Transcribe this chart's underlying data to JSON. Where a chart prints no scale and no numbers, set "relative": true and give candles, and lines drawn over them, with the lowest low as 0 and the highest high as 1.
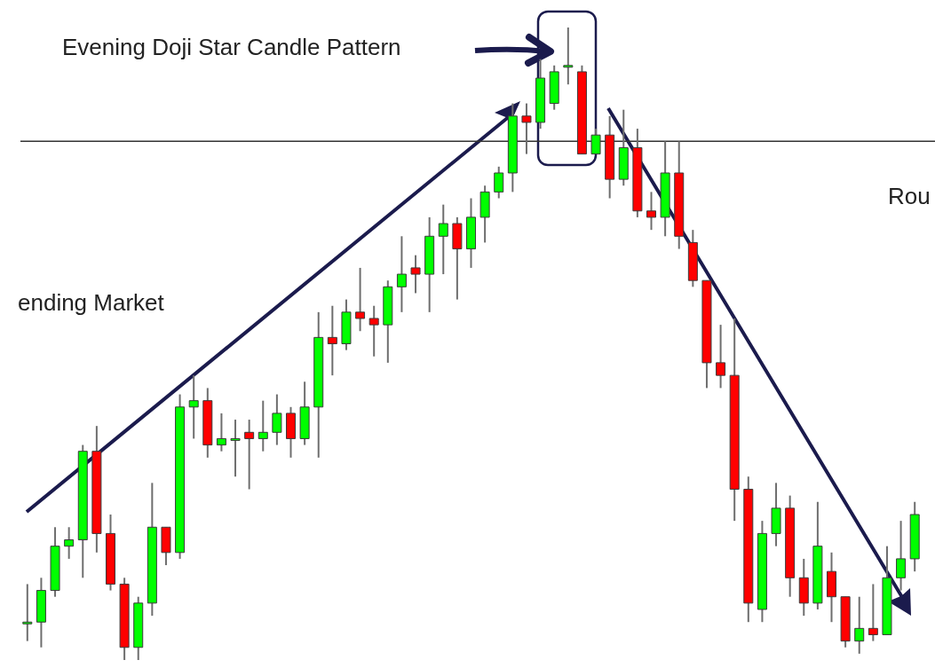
{
  "chart_data": {
    "type": "candlestick",
    "relative": true,
    "annotations": [
      "Evening Doji Star Candle Pattern",
      "ending Market",
      "Rou"
    ],
    "categories": [
      null,
      null,
      null,
      null,
      null,
      null,
      null,
      null,
      null,
      null,
      null,
      null,
      null,
      null,
      null,
      null,
      null,
      null,
      null,
      null,
      null,
      null,
      null,
      null,
      null,
      null,
      null,
      null,
      null,
      null,
      null,
      null,
      null,
      null,
      null,
      null,
      null,
      null,
      null,
      null,
      null,
      null,
      null,
      null,
      null,
      null,
      null,
      null,
      null,
      null,
      null,
      null,
      null,
      null,
      null,
      null,
      null,
      null,
      null,
      null,
      null,
      null,
      null,
      null,
      null
    ],
    "ohlc": [
      [
        0.06,
        0.12,
        0.03,
        0.06
      ],
      [
        0.06,
        0.13,
        0.02,
        0.11
      ],
      [
        0.11,
        0.21,
        0.1,
        0.18
      ],
      [
        0.18,
        0.21,
        0.16,
        0.19
      ],
      [
        0.19,
        0.34,
        0.13,
        0.33
      ],
      [
        0.33,
        0.37,
        0.17,
        0.2
      ],
      [
        0.2,
        0.23,
        0.11,
        0.12
      ],
      [
        0.12,
        0.13,
        0,
        0.02
      ],
      [
        0.02,
        0.1,
        0,
        0.09
      ],
      [
        0.09,
        0.28,
        0.07,
        0.21
      ],
      [
        0.21,
        0.21,
        0.15,
        0.17
      ],
      [
        0.17,
        0.42,
        0.16,
        0.4
      ],
      [
        0.4,
        0.45,
        0.35,
        0.41
      ],
      [
        0.41,
        0.43,
        0.32,
        0.34
      ],
      [
        0.34,
        0.39,
        0.33,
        0.35
      ],
      [
        0.35,
        0.38,
        0.29,
        0.35
      ],
      [
        0.36,
        0.38,
        0.27,
        0.35
      ],
      [
        0.35,
        0.41,
        0.33,
        0.36
      ],
      [
        0.36,
        0.42,
        0.34,
        0.39
      ],
      [
        0.39,
        0.4,
        0.32,
        0.35
      ],
      [
        0.35,
        0.44,
        0.34,
        0.4
      ],
      [
        0.4,
        0.55,
        0.32,
        0.51
      ],
      [
        0.51,
        0.56,
        0.45,
        0.5
      ],
      [
        0.5,
        0.57,
        0.49,
        0.55
      ],
      [
        0.55,
        0.62,
        0.52,
        0.54
      ],
      [
        0.54,
        0.56,
        0.48,
        0.53
      ],
      [
        0.53,
        0.6,
        0.47,
        0.59
      ],
      [
        0.59,
        0.67,
        0.55,
        0.61
      ],
      [
        0.62,
        0.64,
        0.58,
        0.61
      ],
      [
        0.61,
        0.7,
        0.55,
        0.67
      ],
      [
        0.67,
        0.72,
        0.61,
        0.69
      ],
      [
        0.69,
        0.7,
        0.57,
        0.65
      ],
      [
        0.65,
        0.73,
        0.62,
        0.7
      ],
      [
        0.7,
        0.75,
        0.66,
        0.74
      ],
      [
        0.74,
        0.78,
        0.73,
        0.77
      ],
      [
        0.77,
        0.88,
        0.74,
        0.86
      ],
      [
        0.86,
        0.88,
        0.8,
        0.85
      ],
      [
        0.85,
        0.95,
        0.84,
        0.92
      ],
      [
        0.88,
        0.94,
        0.87,
        0.93
      ],
      [
        0.94,
        1,
        0.91,
        0.94
      ],
      [
        0.93,
        0.94,
        0.8,
        0.8
      ],
      [
        0.8,
        0.84,
        0.8,
        0.83
      ],
      [
        0.83,
        0.86,
        0.73,
        0.76
      ],
      [
        0.76,
        0.87,
        0.75,
        0.81
      ],
      [
        0.81,
        0.84,
        0.7,
        0.71
      ],
      [
        0.71,
        0.74,
        0.68,
        0.7
      ],
      [
        0.7,
        0.82,
        0.67,
        0.77
      ],
      [
        0.77,
        0.82,
        0.65,
        0.67
      ],
      [
        0.66,
        0.68,
        0.59,
        0.6
      ],
      [
        0.6,
        0.6,
        0.43,
        0.47
      ],
      [
        0.47,
        0.53,
        0.43,
        0.45
      ],
      [
        0.45,
        0.54,
        0.22,
        0.27
      ],
      [
        0.27,
        0.29,
        0.06,
        0.09
      ],
      [
        0.08,
        0.22,
        0.06,
        0.2
      ],
      [
        0.2,
        0.28,
        0.18,
        0.24
      ],
      [
        0.24,
        0.26,
        0.1,
        0.13
      ],
      [
        0.13,
        0.16,
        0.07,
        0.09
      ],
      [
        0.09,
        0.25,
        0.08,
        0.18
      ],
      [
        0.14,
        0.17,
        0.06,
        0.1
      ],
      [
        0.1,
        0.1,
        0.02,
        0.03
      ],
      [
        0.03,
        0.1,
        0.01,
        0.05
      ],
      [
        0.05,
        0.12,
        0.03,
        0.04
      ],
      [
        0.04,
        0.18,
        0.04,
        0.13
      ],
      [
        0.13,
        0.22,
        0.11,
        0.16
      ],
      [
        0.16,
        0.25,
        0.14,
        0.23
      ]
    ],
    "colors": [
      "#00ff00",
      "#00ff00",
      "#00ff00",
      "#00ff00",
      "#00ff00",
      "#ff0000",
      "#ff0000",
      "#ff0000",
      "#00ff00",
      "#00ff00",
      "#ff0000",
      "#00ff00",
      "#00ff00",
      "#ff0000",
      "#00ff00",
      "#00ff00",
      "#ff0000",
      "#00ff00",
      "#00ff00",
      "#ff0000",
      "#00ff00",
      "#00ff00",
      "#ff0000",
      "#00ff00",
      "#ff0000",
      "#ff0000",
      "#00ff00",
      "#00ff00",
      "#ff0000",
      "#00ff00",
      "#00ff00",
      "#ff0000",
      "#00ff00",
      "#00ff00",
      "#00ff00",
      "#00ff00",
      "#ff0000",
      "#00ff00",
      "#00ff00",
      "#00ff00",
      "#ff0000",
      "#00ff00",
      "#ff0000",
      "#00ff00",
      "#ff0000",
      "#ff0000",
      "#00ff00",
      "#ff0000",
      "#ff0000",
      "#ff0000",
      "#ff0000",
      "#ff0000",
      "#ff0000",
      "#00ff00",
      "#00ff00",
      "#ff0000",
      "#ff0000",
      "#00ff00",
      "#ff0000",
      "#ff0000",
      "#00ff00",
      "#ff0000",
      "#00ff00",
      "#00ff00",
      "#00ff00"
    ],
    "ref_lines": [
      {
        "axis": "y",
        "value": 0.82,
        "color": "#333333"
      }
    ]
  }
}
